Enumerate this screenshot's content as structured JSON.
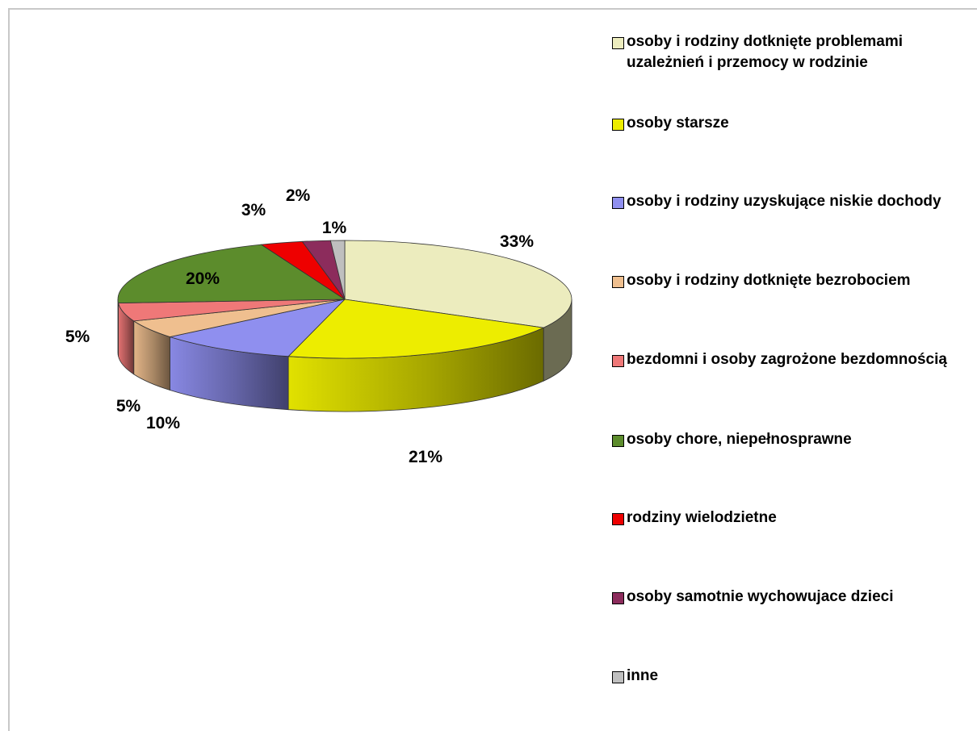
{
  "chart_data": {
    "type": "pie",
    "style": "3d",
    "title": "",
    "slices": [
      {
        "label": "osoby i rodziny dotknięte problemami uzależnień i przemocy w rodzinie",
        "value": 33,
        "value_label": "33%",
        "color": "#ececbe"
      },
      {
        "label": "osoby starsze",
        "value": 21,
        "value_label": "21%",
        "color": "#eded00"
      },
      {
        "label": "osoby i rodziny uzyskujące niskie dochody",
        "value": 10,
        "value_label": "10%",
        "color": "#8f8fef"
      },
      {
        "label": "osoby i rodziny dotknięte bezrobociem",
        "value": 5,
        "value_label": "5%",
        "color": "#efbf8f"
      },
      {
        "label": "bezdomni i osoby zagrożone bezdomnością",
        "value": 5,
        "value_label": "5%",
        "color": "#ef7878"
      },
      {
        "label": "osoby chore, niepełnosprawne",
        "value": 20,
        "value_label": "20%",
        "color": "#5c8c2c"
      },
      {
        "label": "rodziny wielodzietne",
        "value": 3,
        "value_label": "3%",
        "color": "#ee0000"
      },
      {
        "label": "osoby samotnie wychowujace dzieci",
        "value": 2,
        "value_label": "2%",
        "color": "#8c2c5c"
      },
      {
        "label": "inne",
        "value": 1,
        "value_label": "1%",
        "color": "#bfbfbf"
      }
    ],
    "legend_position": "right",
    "legend": [
      {
        "lines": [
          "osoby i rodziny dotknięte problemami",
          "uzależnień i przemocy w rodzinie"
        ]
      },
      {
        "lines": [
          "osoby starsze"
        ]
      },
      {
        "lines": [
          "osoby i rodziny uzyskujące niskie dochody"
        ]
      },
      {
        "lines": [
          "osoby i rodziny dotknięte bezrobociem"
        ]
      },
      {
        "lines": [
          "bezdomni i osoby zagrożone bezdomnością"
        ]
      },
      {
        "lines": [
          "osoby chore, niepełnosprawne"
        ]
      },
      {
        "lines": [
          "rodziny wielodzietne"
        ]
      },
      {
        "lines": [
          "osoby samotnie wychowujace dzieci"
        ]
      },
      {
        "lines": [
          "inne"
        ]
      }
    ]
  }
}
